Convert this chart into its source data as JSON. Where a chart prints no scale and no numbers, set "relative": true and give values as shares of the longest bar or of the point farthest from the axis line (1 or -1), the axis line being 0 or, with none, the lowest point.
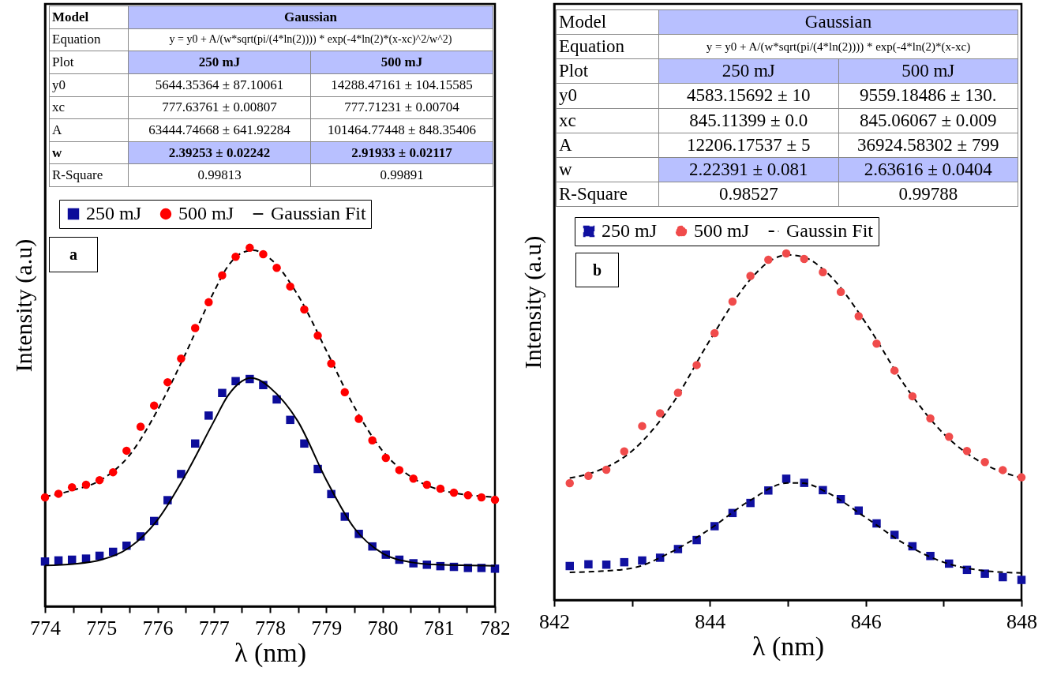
{
  "chart_data": [
    {
      "type": "scatter",
      "xlabel": "λ (nm)",
      "ylabel": "Intensity (a.u)",
      "relative": true,
      "tick_labels": "x",
      "legend": "top",
      "grid": false,
      "annotations": [
        "Model",
        "Gaussian",
        "Equation",
        "y = y0 + A/(w*sqrt(pi/(4*ln(2)))) * exp(-4*ln(2)*(x-xc)^2/w^2)",
        "Plot",
        "250 mJ",
        "500 mJ",
        "y0",
        "5644.35364 ± 87.10061",
        "14288.47161 ± 104.15585",
        "xc",
        "777.63761 ± 0.00807",
        "777.71231 ± 0.00704",
        "A",
        "63444.74668 ± 641.92284",
        "101464.77448 ± 848.35406",
        "w",
        "2.39253 ± 0.02242",
        "2.91933 ± 0.02117",
        "R-Square",
        "0.99813",
        "0.99891",
        "a"
      ],
      "xlim": [
        774,
        782
      ],
      "xticks": [
        774,
        {
          "value": 774.5,
          "label": null
        },
        775,
        {
          "value": 775.5,
          "label": null
        },
        776,
        {
          "value": 776.5,
          "label": null
        },
        777,
        {
          "value": 777.5,
          "label": null
        },
        778,
        {
          "value": 778.5,
          "label": null
        },
        779,
        {
          "value": 779.5,
          "label": null
        },
        780,
        {
          "value": 780.5,
          "label": null
        },
        781,
        {
          "value": 781.5,
          "label": null
        },
        782
      ],
      "x": [
        774.0,
        774.24,
        774.48,
        774.73,
        774.97,
        775.21,
        775.45,
        775.7,
        775.94,
        776.18,
        776.42,
        776.67,
        776.91,
        777.15,
        777.39,
        777.64,
        777.88,
        778.12,
        778.36,
        778.61,
        778.85,
        779.09,
        779.33,
        779.58,
        779.82,
        780.06,
        780.3,
        780.55,
        780.79,
        781.03,
        781.27,
        781.52,
        781.76,
        782.0
      ],
      "series": [
        {
          "name": "250 mJ",
          "marker": "square",
          "color": "#0c0c9a",
          "values": [
            0.125,
            0.128,
            0.13,
            0.133,
            0.141,
            0.152,
            0.169,
            0.195,
            0.238,
            0.296,
            0.369,
            0.454,
            0.532,
            0.595,
            0.628,
            0.634,
            0.617,
            0.577,
            0.52,
            0.454,
            0.383,
            0.313,
            0.25,
            0.202,
            0.167,
            0.144,
            0.13,
            0.12,
            0.116,
            0.112,
            0.11,
            0.107,
            0.107,
            0.105
          ]
        },
        {
          "name": "500 mJ",
          "marker": "circle",
          "color": "#ff0000",
          "values": [
            0.304,
            0.314,
            0.332,
            0.339,
            0.352,
            0.374,
            0.434,
            0.501,
            0.56,
            0.625,
            0.691,
            0.776,
            0.848,
            0.923,
            0.975,
            1.0,
            0.982,
            0.944,
            0.892,
            0.828,
            0.755,
            0.677,
            0.597,
            0.523,
            0.463,
            0.414,
            0.38,
            0.356,
            0.339,
            0.328,
            0.317,
            0.31,
            0.304,
            0.297
          ]
        },
        {
          "name": "Gaussian Fit",
          "type": "line",
          "line_style": "solid",
          "color": "#000000",
          "x": [
            774,
            774.5,
            775,
            775.5,
            776,
            776.5,
            777,
            777.25,
            777.5,
            777.65,
            777.8,
            778,
            778.5,
            779,
            779.5,
            780,
            780.5,
            781,
            782
          ],
          "values": [
            0.114,
            0.118,
            0.13,
            0.164,
            0.241,
            0.367,
            0.515,
            0.587,
            0.628,
            0.637,
            0.632,
            0.61,
            0.515,
            0.353,
            0.218,
            0.148,
            0.123,
            0.116,
            0.113
          ]
        },
        {
          "type": "line",
          "line_style": "dashed",
          "color": "#000000",
          "x": [
            774,
            774.5,
            775,
            775.5,
            776,
            776.5,
            777,
            777.25,
            777.5,
            777.7,
            778,
            778.5,
            779,
            779.5,
            780,
            780.5,
            781,
            782
          ],
          "values": [
            0.306,
            0.324,
            0.353,
            0.421,
            0.547,
            0.705,
            0.876,
            0.948,
            0.986,
            0.993,
            0.97,
            0.867,
            0.714,
            0.556,
            0.434,
            0.362,
            0.326,
            0.304
          ]
        }
      ]
    },
    {
      "type": "scatter",
      "xlabel": "λ (nm)",
      "ylabel": "Intensity (a.u)",
      "relative": true,
      "tick_labels": "x",
      "legend": "top",
      "grid": false,
      "annotations": [
        "Model",
        "Gaussian",
        "Equation",
        "y = y0 + A/(w*sqrt(pi/(4*ln(2)))) * exp(-4*ln(2)*(x-xc)",
        "Plot",
        "250 mJ",
        "500 mJ",
        "y0",
        "4583.15692 ± 10",
        "9559.18486 ± 130.",
        "xc",
        "845.11399 ± 0.0",
        "845.06067 ± 0.009",
        "A",
        "12206.17537 ± 5",
        "36924.58302 ± 799",
        "w",
        "2.22391 ± 0.081",
        "2.63616 ± 0.0404",
        "R-Square",
        "0.98527",
        "0.99788",
        "b"
      ],
      "xlim": [
        842,
        848
      ],
      "xticks": [
        842,
        {
          "value": 843,
          "label": null
        },
        844,
        {
          "value": 845,
          "label": null
        },
        846,
        {
          "value": 847,
          "label": null
        },
        848
      ],
      "x": [
        842.2,
        842.44,
        842.67,
        842.9,
        843.13,
        843.36,
        843.59,
        843.83,
        844.06,
        844.29,
        844.52,
        844.75,
        844.98,
        845.21,
        845.45,
        845.68,
        845.91,
        846.14,
        846.37,
        846.6,
        846.83,
        847.07,
        847.3,
        847.53,
        847.76,
        848.0
      ],
      "series": [
        {
          "name": "250 mJ",
          "marker": "square",
          "color": "#1010a0",
          "values": [
            0.098,
            0.103,
            0.102,
            0.109,
            0.114,
            0.122,
            0.147,
            0.173,
            0.213,
            0.251,
            0.28,
            0.316,
            0.35,
            0.338,
            0.317,
            0.291,
            0.258,
            0.221,
            0.188,
            0.155,
            0.127,
            0.105,
            0.087,
            0.076,
            0.066,
            0.058
          ]
        },
        {
          "name": "500 mJ",
          "marker": "circle",
          "color": "#f04b4b",
          "values": [
            0.337,
            0.358,
            0.376,
            0.429,
            0.502,
            0.539,
            0.598,
            0.678,
            0.77,
            0.861,
            0.935,
            0.982,
            1.0,
            0.984,
            0.946,
            0.889,
            0.819,
            0.74,
            0.662,
            0.588,
            0.524,
            0.471,
            0.43,
            0.398,
            0.375,
            0.354
          ]
        },
        {
          "name": "Gaussin Fit",
          "type": "line",
          "line_style": "dashed",
          "color": "#000000",
          "x": [
            842.2,
            842.5,
            843,
            843.5,
            844,
            844.5,
            845,
            845.2,
            845.5,
            846,
            846.5,
            847,
            847.5,
            848
          ],
          "values": [
            0.08,
            0.082,
            0.092,
            0.138,
            0.205,
            0.285,
            0.338,
            0.337,
            0.311,
            0.238,
            0.162,
            0.109,
            0.085,
            0.078
          ]
        },
        {
          "type": "line",
          "line_style": "dashed",
          "color": "#000000",
          "x": [
            842.2,
            842.5,
            843,
            843.5,
            844,
            844.5,
            844.75,
            845,
            845.2,
            845.5,
            846,
            846.5,
            847,
            847.5,
            848
          ],
          "values": [
            0.352,
            0.368,
            0.43,
            0.56,
            0.75,
            0.92,
            0.975,
            0.996,
            0.99,
            0.945,
            0.8,
            0.62,
            0.48,
            0.395,
            0.352
          ]
        }
      ]
    }
  ]
}
